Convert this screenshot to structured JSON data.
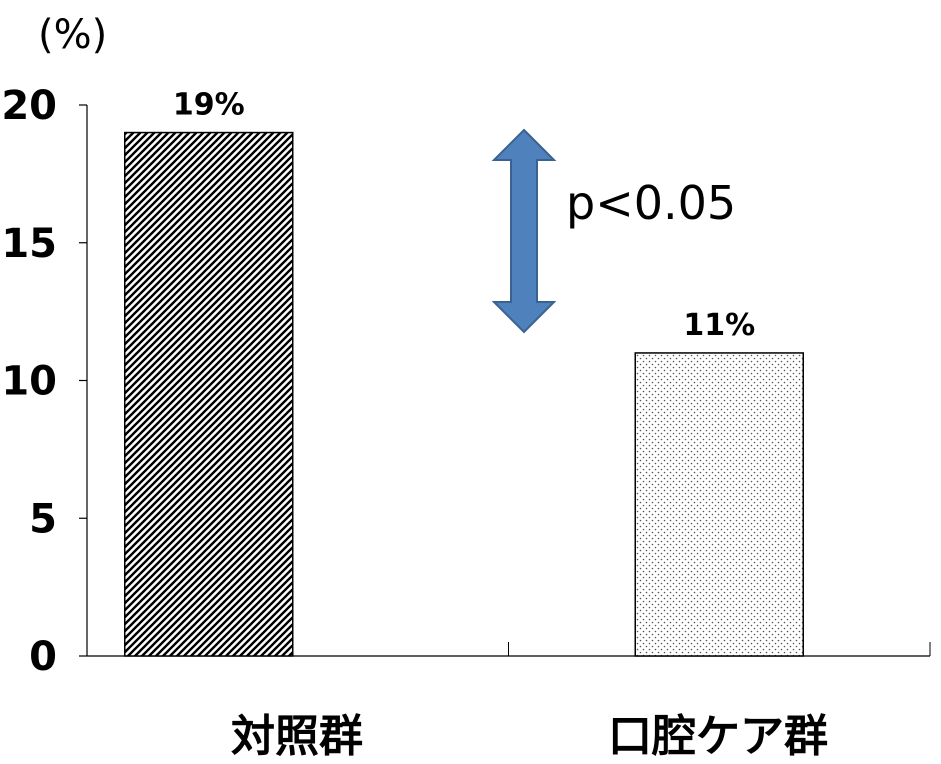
{
  "chart_data": {
    "type": "bar",
    "y_unit": "(%)",
    "categories": [
      "対照群",
      "口腔ケア群"
    ],
    "values": [
      19,
      11
    ],
    "data_labels": [
      "19%",
      "11%"
    ],
    "ylim": [
      0,
      20
    ],
    "yticks": [
      0,
      5,
      10,
      15,
      20
    ],
    "grid": false,
    "annotation": "p<0.05",
    "bar_patterns": [
      "diagonal-hatch",
      "dotted"
    ],
    "arrow_color": "#4f81bd"
  }
}
